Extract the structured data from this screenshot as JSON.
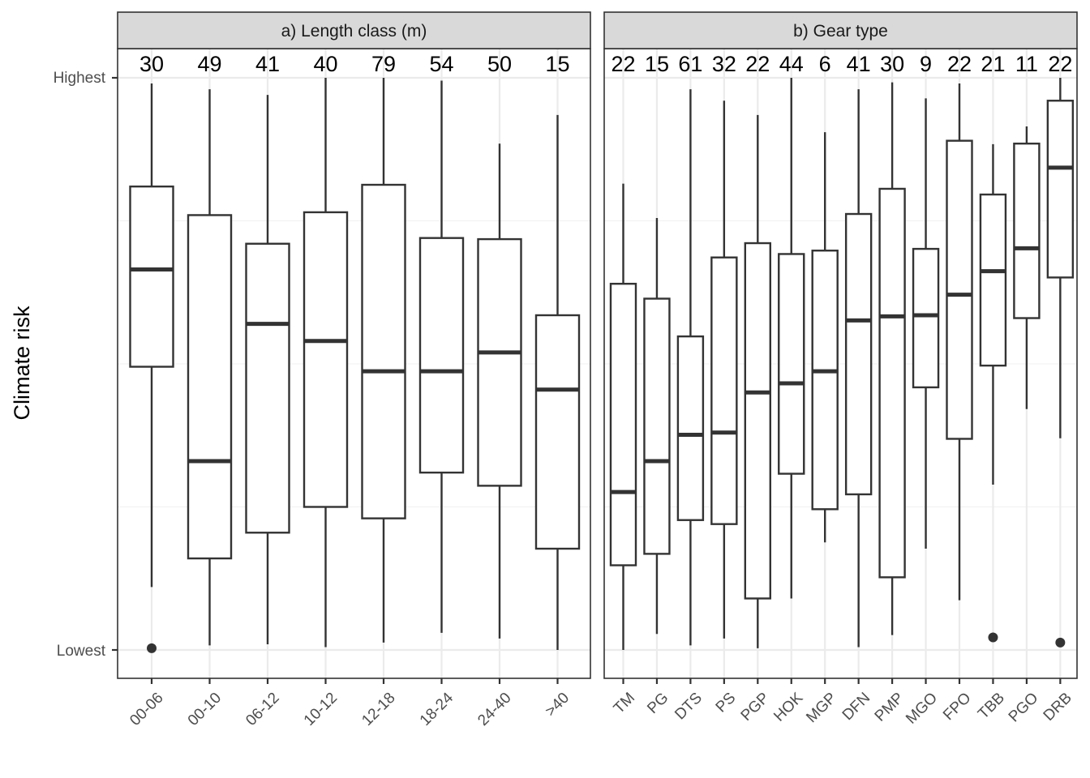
{
  "chart_data": {
    "type": "boxplot",
    "ylabel": "Climate risk",
    "y_ticks": [
      "Highest",
      "Lowest"
    ],
    "ylim": [
      -0.05,
      1.05
    ],
    "grid": true,
    "panels": [
      {
        "title": "a) Length class (m)",
        "categories": [
          {
            "label": "00-06",
            "n": "30",
            "min": 0.11,
            "q1": 0.495,
            "median": 0.665,
            "q3": 0.81,
            "max": 0.99,
            "outliers": [
              0.003
            ]
          },
          {
            "label": "00-10",
            "n": "49",
            "min": 0.008,
            "q1": 0.16,
            "median": 0.33,
            "q3": 0.76,
            "max": 0.98,
            "outliers": []
          },
          {
            "label": "06-12",
            "n": "41",
            "min": 0.01,
            "q1": 0.205,
            "median": 0.57,
            "q3": 0.71,
            "max": 0.97,
            "outliers": []
          },
          {
            "label": "10-12",
            "n": "40",
            "min": 0.005,
            "q1": 0.25,
            "median": 0.54,
            "q3": 0.765,
            "max": 1.0,
            "outliers": []
          },
          {
            "label": "12-18",
            "n": "79",
            "min": 0.013,
            "q1": 0.23,
            "median": 0.487,
            "q3": 0.813,
            "max": 1.0,
            "outliers": []
          },
          {
            "label": "18-24",
            "n": "54",
            "min": 0.03,
            "q1": 0.31,
            "median": 0.487,
            "q3": 0.72,
            "max": 0.995,
            "outliers": []
          },
          {
            "label": "24-40",
            "n": "50",
            "min": 0.02,
            "q1": 0.287,
            "median": 0.52,
            "q3": 0.718,
            "max": 0.885,
            "outliers": []
          },
          {
            "label": ">40",
            "n": "15",
            "min": 0.0,
            "q1": 0.177,
            "median": 0.455,
            "q3": 0.585,
            "max": 0.935,
            "outliers": []
          }
        ]
      },
      {
        "title": "b) Gear type",
        "categories": [
          {
            "label": "TM",
            "n": "22",
            "min": 0.0,
            "q1": 0.148,
            "median": 0.276,
            "q3": 0.64,
            "max": 0.815,
            "outliers": []
          },
          {
            "label": "PG",
            "n": "15",
            "min": 0.028,
            "q1": 0.168,
            "median": 0.33,
            "q3": 0.614,
            "max": 0.755,
            "outliers": []
          },
          {
            "label": "DTS",
            "n": "61",
            "min": 0.008,
            "q1": 0.227,
            "median": 0.376,
            "q3": 0.548,
            "max": 0.98,
            "outliers": []
          },
          {
            "label": "PS",
            "n": "32",
            "min": 0.02,
            "q1": 0.22,
            "median": 0.38,
            "q3": 0.686,
            "max": 0.96,
            "outliers": []
          },
          {
            "label": "PGP",
            "n": "22",
            "min": 0.003,
            "q1": 0.09,
            "median": 0.45,
            "q3": 0.711,
            "max": 0.935,
            "outliers": []
          },
          {
            "label": "HOK",
            "n": "44",
            "min": 0.09,
            "q1": 0.308,
            "median": 0.466,
            "q3": 0.692,
            "max": 1.0,
            "outliers": []
          },
          {
            "label": "MGP",
            "n": "6",
            "min": 0.188,
            "q1": 0.246,
            "median": 0.487,
            "q3": 0.698,
            "max": 0.905,
            "outliers": []
          },
          {
            "label": "DFN",
            "n": "41",
            "min": 0.005,
            "q1": 0.272,
            "median": 0.576,
            "q3": 0.762,
            "max": 0.98,
            "outliers": []
          },
          {
            "label": "PMP",
            "n": "30",
            "min": 0.026,
            "q1": 0.127,
            "median": 0.583,
            "q3": 0.806,
            "max": 0.992,
            "outliers": []
          },
          {
            "label": "MGO",
            "n": "9",
            "min": 0.177,
            "q1": 0.459,
            "median": 0.585,
            "q3": 0.701,
            "max": 0.964,
            "outliers": []
          },
          {
            "label": "FPO",
            "n": "22",
            "min": 0.087,
            "q1": 0.369,
            "median": 0.621,
            "q3": 0.89,
            "max": 0.99,
            "outliers": []
          },
          {
            "label": "TBB",
            "n": "21",
            "min": 0.289,
            "q1": 0.497,
            "median": 0.662,
            "q3": 0.796,
            "max": 0.884,
            "outliers": [
              0.022
            ]
          },
          {
            "label": "PGO",
            "n": "11",
            "min": 0.421,
            "q1": 0.58,
            "median": 0.702,
            "q3": 0.885,
            "max": 0.915,
            "outliers": []
          },
          {
            "label": "DRB",
            "n": "22",
            "min": 0.37,
            "q1": 0.651,
            "median": 0.843,
            "q3": 0.96,
            "max": 1.0,
            "outliers": [
              0.013
            ]
          }
        ]
      }
    ]
  }
}
